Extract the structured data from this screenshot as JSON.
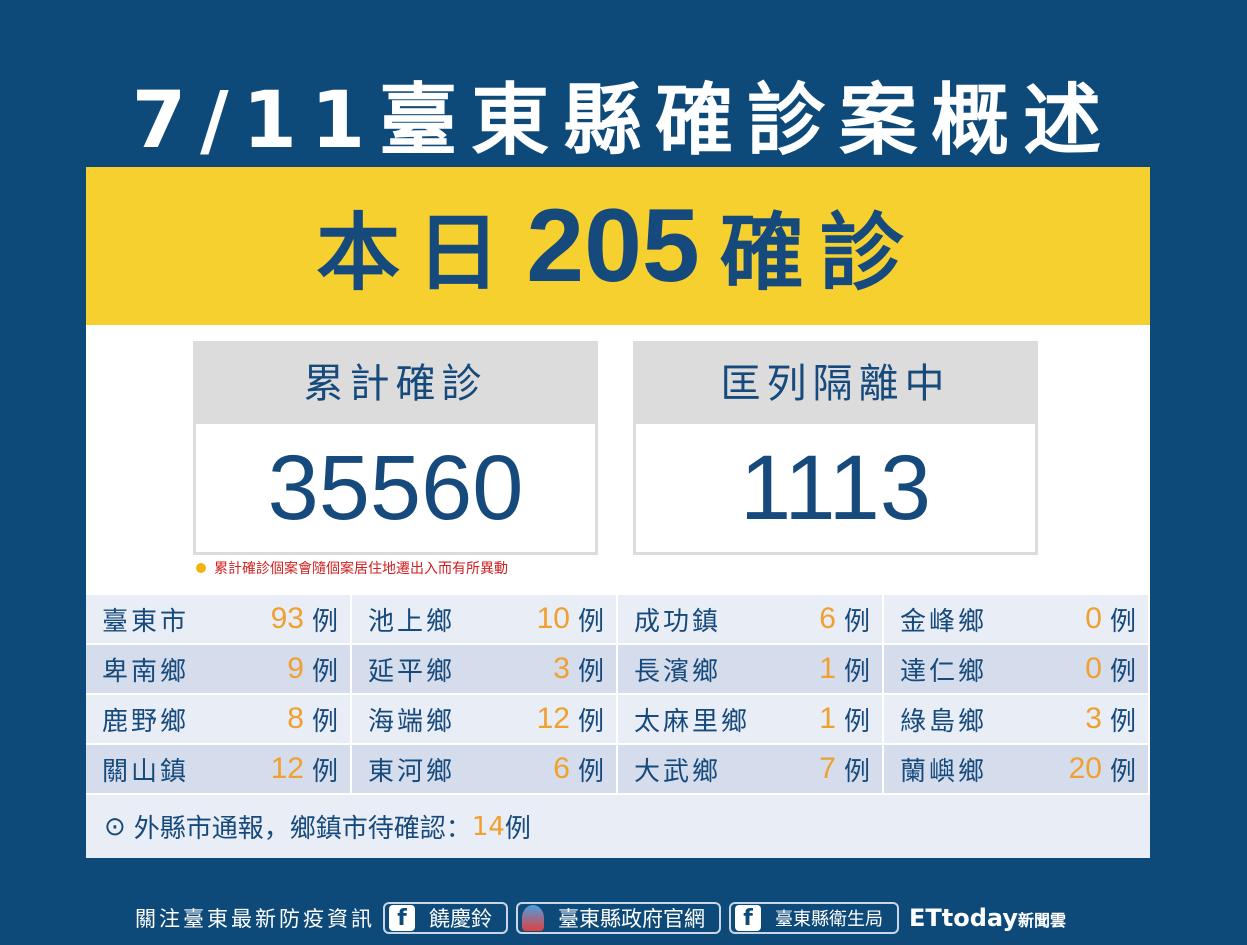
{
  "title": "7/11臺東縣確診案概述",
  "today": {
    "prefix": "本日",
    "count": "205",
    "suffix": "確診"
  },
  "cumulative": {
    "label": "累計確診",
    "value": "35560"
  },
  "isolation": {
    "label": "匡列隔離中",
    "value": "1113"
  },
  "note": "累計確診個案會隨個案居住地遷出入而有所異動",
  "unit": "例",
  "rows": [
    [
      {
        "name": "臺東市",
        "n": "93"
      },
      {
        "name": "池上鄉",
        "n": "10"
      },
      {
        "name": "成功鎮",
        "n": "6"
      },
      {
        "name": "金峰鄉",
        "n": "0"
      }
    ],
    [
      {
        "name": "卑南鄉",
        "n": "9"
      },
      {
        "name": "延平鄉",
        "n": "3"
      },
      {
        "name": "長濱鄉",
        "n": "1"
      },
      {
        "name": "達仁鄉",
        "n": "0"
      }
    ],
    [
      {
        "name": "鹿野鄉",
        "n": "8"
      },
      {
        "name": "海端鄉",
        "n": "12"
      },
      {
        "name": "太麻里鄉",
        "n": "1"
      },
      {
        "name": "綠島鄉",
        "n": "3"
      }
    ],
    [
      {
        "name": "關山鎮",
        "n": "12"
      },
      {
        "name": "東河鄉",
        "n": "6"
      },
      {
        "name": "大武鄉",
        "n": "7"
      },
      {
        "name": "蘭嶼鄉",
        "n": "20"
      }
    ]
  ],
  "footer": {
    "icon": "⊙",
    "text": "外縣市通報，鄉鎮市待確認：",
    "n": "14",
    "unit": "例"
  },
  "bottom": {
    "follow": "關注臺東最新防疫資訊",
    "fb1": "饒慶鈴",
    "gov": "臺東縣政府官網",
    "fb2": "臺東縣衛生局",
    "brand": "ETtoday",
    "brand_sub": "新聞雲"
  },
  "colors": {
    "background": "#0e4a79",
    "band": "#f6d02f",
    "text": "#174a7c",
    "number": "#f0a030"
  }
}
